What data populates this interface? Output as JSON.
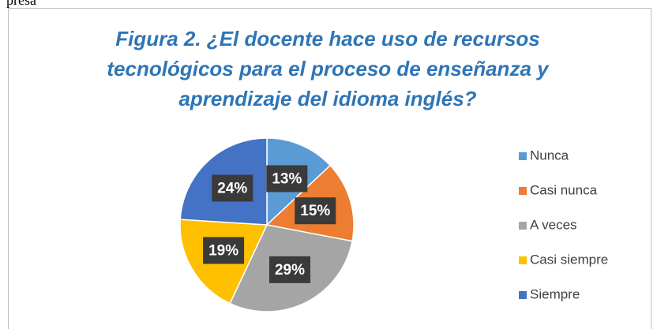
{
  "page_fragment": "presa",
  "chart_data": {
    "type": "pie",
    "title": [
      "Figura 2.  ¿El docente hace uso de recursos",
      "tecnológicos para el proceso de enseñanza y",
      "aprendizaje del idioma inglés?"
    ],
    "categories": [
      "Nunca",
      "Casi nunca",
      "A veces",
      "Casi siempre",
      "Siempre"
    ],
    "values": [
      13,
      15,
      29,
      19,
      24
    ],
    "value_labels": [
      "13%",
      "15%",
      "29%",
      "19%",
      "24%"
    ],
    "colors": [
      "#5b9bd5",
      "#ed7d31",
      "#a5a5a5",
      "#ffc000",
      "#4472c4"
    ],
    "legend": "right"
  }
}
